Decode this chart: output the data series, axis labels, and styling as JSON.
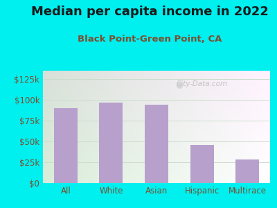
{
  "title": "Median per capita income in 2022",
  "subtitle": "Black Point-Green Point, CA",
  "categories": [
    "All",
    "White",
    "Asian",
    "Hispanic",
    "Multirace"
  ],
  "values": [
    90000,
    97000,
    94000,
    46000,
    28000
  ],
  "bar_color": "#b8a0cc",
  "title_fontsize": 13,
  "subtitle_fontsize": 9.5,
  "tick_label_fontsize": 8.5,
  "ytick_labels": [
    "$0",
    "$25k",
    "$50k",
    "$75k",
    "$100k",
    "$125k"
  ],
  "ytick_values": [
    0,
    25000,
    50000,
    75000,
    100000,
    125000
  ],
  "ylim": [
    0,
    135000
  ],
  "background_outer": "#00efef",
  "title_color": "#1a1a1a",
  "subtitle_color": "#7b4f2e",
  "tick_color": "#7b4f2e",
  "grid_color": "#ccddcc",
  "watermark": "City-Data.com"
}
